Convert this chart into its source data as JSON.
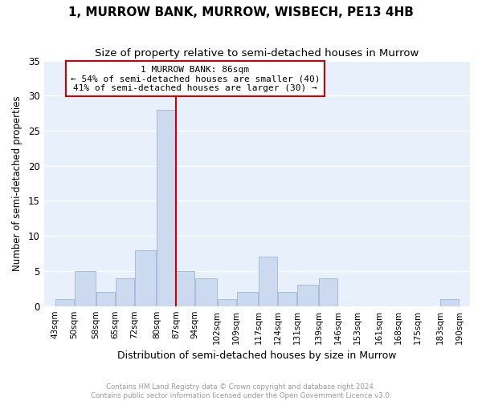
{
  "title": "1, MURROW BANK, MURROW, WISBECH, PE13 4HB",
  "subtitle": "Size of property relative to semi-detached houses in Murrow",
  "xlabel": "Distribution of semi-detached houses by size in Murrow",
  "ylabel": "Number of semi-detached properties",
  "footnote1": "Contains HM Land Registry data © Crown copyright and database right 2024.",
  "footnote2": "Contains public sector information licensed under the Open Government Licence v3.0.",
  "bar_edges": [
    43,
    50,
    58,
    65,
    72,
    80,
    87,
    94,
    102,
    109,
    117,
    124,
    131,
    139,
    146,
    153,
    161,
    168,
    175,
    183,
    190
  ],
  "bar_heights": [
    1,
    5,
    2,
    4,
    8,
    28,
    5,
    4,
    1,
    2,
    7,
    2,
    3,
    4,
    0,
    0,
    0,
    0,
    0,
    1
  ],
  "bar_color": "#ccdaf0",
  "bar_edgecolor": "#aabcd8",
  "vline_x": 87,
  "vline_color": "#cc0000",
  "annotation_title": "1 MURROW BANK: 86sqm",
  "annotation_line1": "← 54% of semi-detached houses are smaller (40)",
  "annotation_line2": "41% of semi-detached houses are larger (30) →",
  "annotation_box_color": "#ffffff",
  "annotation_border_color": "#cc0000",
  "ylim": [
    0,
    35
  ],
  "yticks": [
    0,
    5,
    10,
    15,
    20,
    25,
    30,
    35
  ],
  "plot_bg_color": "#e8f0fb",
  "title_fontsize": 11,
  "subtitle_fontsize": 9.5,
  "tick_labels": [
    "43sqm",
    "50sqm",
    "58sqm",
    "65sqm",
    "72sqm",
    "80sqm",
    "87sqm",
    "94sqm",
    "102sqm",
    "109sqm",
    "117sqm",
    "124sqm",
    "131sqm",
    "139sqm",
    "146sqm",
    "153sqm",
    "161sqm",
    "168sqm",
    "175sqm",
    "183sqm",
    "190sqm"
  ]
}
